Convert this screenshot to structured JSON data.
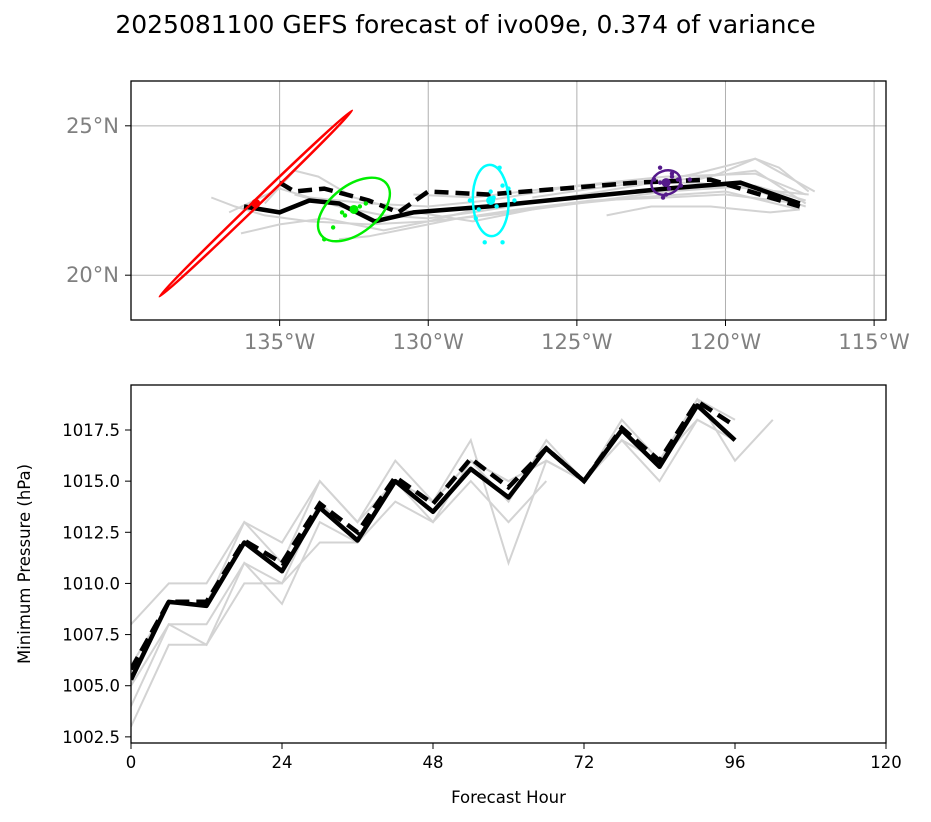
{
  "figure_title": "2025081100 GEFS forecast of ivo09e, 0.374 of variance",
  "chart_data": [
    {
      "type": "line",
      "panel": "track-map",
      "xlim": [
        -140,
        -114.6
      ],
      "ylim": [
        18.5,
        26.5
      ],
      "x_ticks": [
        -135,
        -130,
        -125,
        -120,
        -115
      ],
      "x_tick_labels": [
        "135°W",
        "130°W",
        "125°W",
        "120°W",
        "115°W"
      ],
      "y_ticks": [
        20,
        25
      ],
      "y_tick_labels": [
        "20°N",
        "25°N"
      ],
      "grid": true,
      "tick_label_color": "#808080",
      "series": [
        {
          "style": "ensemble",
          "color": "#d3d3d3",
          "points": [
            [
              -137.3,
              22.6
            ],
            [
              -136.5,
              22.3
            ],
            [
              -135.5,
              22.0
            ],
            [
              -134,
              21.8
            ],
            [
              -132,
              21.7
            ],
            [
              -130,
              21.8
            ],
            [
              -128,
              22.0
            ],
            [
              -125,
              22.4
            ],
            [
              -122,
              22.8
            ],
            [
              -119,
              23.0
            ],
            [
              -117.3,
              22.5
            ]
          ]
        },
        {
          "style": "ensemble",
          "color": "#d3d3d3",
          "points": [
            [
              -136.7,
              22.1
            ],
            [
              -135,
              22.9
            ],
            [
              -134,
              22.6
            ],
            [
              -132,
              22.4
            ],
            [
              -130,
              22.3
            ],
            [
              -128,
              22.5
            ],
            [
              -125,
              23.0
            ],
            [
              -122,
              23.3
            ],
            [
              -119,
              23.4
            ],
            [
              -117.3,
              22.7
            ]
          ]
        },
        {
          "style": "ensemble",
          "color": "#d3d3d3",
          "points": [
            [
              -136.3,
              21.4
            ],
            [
              -135,
              21.7
            ],
            [
              -133.5,
              21.9
            ],
            [
              -131.5,
              21.5
            ],
            [
              -130,
              21.8
            ],
            [
              -128,
              22.3
            ],
            [
              -125,
              22.6
            ],
            [
              -122,
              22.9
            ],
            [
              -119.5,
              23.0
            ],
            [
              -117.3,
              22.3
            ]
          ]
        },
        {
          "style": "ensemble",
          "color": "#d3d3d3",
          "points": [
            [
              -135.5,
              22.4
            ],
            [
              -134.5,
              23.5
            ],
            [
              -133.7,
              23.3
            ],
            [
              -132.5,
              22.6
            ],
            [
              -131,
              22.2
            ],
            [
              -128.5,
              21.8
            ],
            [
              -126,
              22.3
            ],
            [
              -123,
              22.6
            ],
            [
              -120,
              22.8
            ],
            [
              -117.5,
              22.2
            ]
          ]
        },
        {
          "style": "ensemble",
          "color": "#d3d3d3",
          "points": [
            [
              -134.5,
              22.7
            ],
            [
              -133,
              22.3
            ],
            [
              -131.5,
              22.0
            ],
            [
              -130,
              21.9
            ],
            [
              -128.5,
              22.1
            ],
            [
              -126,
              22.5
            ],
            [
              -123,
              23.0
            ],
            [
              -121,
              23.4
            ],
            [
              -119,
              23.9
            ],
            [
              -117,
              22.8
            ]
          ]
        },
        {
          "style": "ensemble",
          "color": "#d3d3d3",
          "points": [
            [
              -133,
              21.2
            ],
            [
              -132,
              21.3
            ],
            [
              -130.5,
              21.6
            ],
            [
              -129,
              21.9
            ],
            [
              -127,
              22.2
            ],
            [
              -124.5,
              22.5
            ],
            [
              -122,
              22.6
            ],
            [
              -120,
              22.7
            ],
            [
              -117.5,
              22.4
            ]
          ]
        },
        {
          "style": "ensemble",
          "color": "#d3d3d3",
          "points": [
            [
              -130.5,
              22.7
            ],
            [
              -128.5,
              22.6
            ],
            [
              -126,
              22.9
            ],
            [
              -123.5,
              23.1
            ],
            [
              -121.5,
              23.2
            ],
            [
              -119,
              23.5
            ],
            [
              -117.3,
              22.4
            ]
          ]
        },
        {
          "style": "ensemble",
          "color": "#d3d3d3",
          "points": [
            [
              -124,
              22.0
            ],
            [
              -122.5,
              22.3
            ],
            [
              -120.5,
              22.3
            ],
            [
              -118.5,
              22.1
            ],
            [
              -117.5,
              22.2
            ]
          ]
        },
        {
          "style": "ensemble",
          "color": "#d3d3d3",
          "points": [
            [
              -126.5,
              22.6
            ],
            [
              -124.5,
              22.9
            ],
            [
              -122.8,
              23.1
            ],
            [
              -121,
              23.1
            ],
            [
              -119.2,
              22.9
            ],
            [
              -117.2,
              22.7
            ]
          ]
        },
        {
          "style": "ensemble",
          "color": "#d3d3d3",
          "points": [
            [
              -121.3,
              23.1
            ],
            [
              -120.2,
              23.4
            ],
            [
              -119,
              23.9
            ],
            [
              -118.2,
              23.6
            ],
            [
              -117.2,
              22.8
            ]
          ]
        },
        {
          "style": "ensemble_mean",
          "color": "#000000",
          "points": [
            [
              -136.2,
              22.3
            ],
            [
              -135,
              22.1
            ],
            [
              -134,
              22.5
            ],
            [
              -133,
              22.4
            ],
            [
              -131.8,
              21.8
            ],
            [
              -130.5,
              22.1
            ],
            [
              -128,
              22.3
            ],
            [
              -125,
              22.6
            ],
            [
              -122,
              22.9
            ],
            [
              -119.5,
              23.1
            ],
            [
              -117.5,
              22.4
            ]
          ]
        },
        {
          "style": "deterministic",
          "color": "#000000",
          "points": [
            [
              -135,
              23.1
            ],
            [
              -134.5,
              22.8
            ],
            [
              -133.5,
              22.9
            ],
            [
              -132,
              22.5
            ],
            [
              -131,
              22.1
            ],
            [
              -130,
              22.8
            ],
            [
              -128,
              22.7
            ],
            [
              -125.5,
              22.9
            ],
            [
              -123,
              23.1
            ],
            [
              -120.5,
              23.2
            ],
            [
              -117.5,
              22.3
            ]
          ]
        }
      ],
      "uncertainty_ellipses": [
        {
          "color": "#ff0000",
          "center": [
            -135.8,
            22.4
          ],
          "semi_axes": [
            4.5,
            0.1
          ],
          "angle": 44
        },
        {
          "color": "#00ee00",
          "center": [
            -132.5,
            22.2
          ],
          "semi_axes": [
            1.4,
            0.8
          ],
          "angle": 38
        },
        {
          "color": "#00ffff",
          "center": [
            -127.9,
            22.5
          ],
          "semi_axes": [
            1.2,
            0.6
          ],
          "angle": -88
        },
        {
          "color": "#551a8b",
          "center": [
            -122,
            23.1
          ],
          "semi_axes": [
            0.5,
            0.4
          ],
          "angle": 20
        }
      ],
      "scatter_points": [
        {
          "color": "#00ee00",
          "points": [
            [
              -132.9,
              22.1
            ],
            [
              -132.3,
              22.3
            ],
            [
              -133.2,
              21.6
            ],
            [
              -132.8,
              22.0
            ],
            [
              -133.5,
              21.2
            ],
            [
              -132.1,
              22.4
            ]
          ]
        },
        {
          "color": "#00ffff",
          "points": [
            [
              -128.3,
              22.2
            ],
            [
              -127.8,
              22.6
            ],
            [
              -127.5,
              23.0
            ],
            [
              -128.1,
              21.1
            ],
            [
              -127.5,
              21.1
            ],
            [
              -127.3,
              22.9
            ],
            [
              -127.1,
              22.5
            ],
            [
              -128.4,
              21.9
            ],
            [
              -127.6,
              23.6
            ],
            [
              -128.6,
              22.5
            ],
            [
              -127.9,
              22.8
            ],
            [
              -127.7,
              22.3
            ]
          ]
        },
        {
          "color": "#551a8b",
          "points": [
            [
              -122.2,
              23.1
            ],
            [
              -121.8,
              23.3
            ],
            [
              -122.1,
              22.6
            ],
            [
              -121.5,
              23.0
            ],
            [
              -122.2,
              23.6
            ],
            [
              -121.9,
              22.9
            ],
            [
              -121.6,
              23.2
            ],
            [
              -122.4,
              23.2
            ],
            [
              -121.2,
              23.2
            ],
            [
              -121.8,
              23.4
            ],
            [
              -122.0,
              22.7
            ]
          ]
        }
      ]
    },
    {
      "type": "line",
      "panel": "pressure",
      "xlabel": "Forecast Hour",
      "ylabel": "Minimum Pressure (hPa)",
      "xlim": [
        0,
        120
      ],
      "ylim": [
        1002.2,
        1019.7
      ],
      "x_ticks": [
        0,
        24,
        48,
        72,
        96,
        120
      ],
      "y_ticks": [
        1002.5,
        1005.0,
        1007.5,
        1010.0,
        1012.5,
        1015.0,
        1017.5
      ],
      "y_tick_labels": [
        "1002.5",
        "1005.0",
        "1007.5",
        "1010.0",
        "1012.5",
        "1015.0",
        "1017.5"
      ],
      "grid": false,
      "series": [
        {
          "style": "ensemble",
          "color": "#d3d3d3",
          "x": [
            0,
            6,
            12,
            18,
            24,
            30,
            36,
            42,
            48,
            54,
            60,
            66,
            72,
            78,
            84,
            90,
            96,
            102
          ],
          "values": [
            1008,
            1010,
            1010,
            1013,
            1012,
            1015,
            1013,
            1016,
            1014,
            1017,
            1011,
            1016,
            1015,
            1017,
            1016,
            1019,
            1016,
            1018
          ]
        },
        {
          "style": "ensemble",
          "color": "#d3d3d3",
          "x": [
            0,
            6,
            12,
            18,
            24,
            30,
            36,
            42,
            48,
            54,
            60,
            66
          ],
          "values": [
            1005,
            1008,
            1007,
            1011,
            1009,
            1013,
            1012,
            1014,
            1013,
            1015,
            1013,
            1015
          ]
        },
        {
          "style": "ensemble",
          "color": "#d3d3d3",
          "x": [
            0,
            6,
            12,
            18,
            24,
            30,
            36,
            42,
            48,
            54,
            60,
            66,
            72,
            78,
            84,
            90,
            96
          ],
          "values": [
            1003,
            1007,
            1007,
            1010,
            1010,
            1012,
            1012,
            1015,
            1013,
            1016,
            1015,
            1016,
            1015,
            1017,
            1015,
            1018,
            1017
          ]
        },
        {
          "style": "ensemble",
          "color": "#d3d3d3",
          "x": [
            0,
            6,
            12,
            18,
            24,
            30,
            36,
            42,
            48,
            54,
            60,
            66,
            72,
            78,
            84,
            90,
            96
          ],
          "values": [
            1006,
            1009,
            1009,
            1013,
            1011,
            1015,
            1013,
            1015,
            1014,
            1016,
            1014,
            1017,
            1015,
            1018,
            1016,
            1019,
            1018
          ]
        },
        {
          "style": "ensemble",
          "color": "#d3d3d3",
          "x": [
            0,
            6,
            12,
            18,
            24,
            30,
            36,
            42,
            48,
            54,
            60,
            66,
            72,
            78,
            84,
            90,
            96
          ],
          "values": [
            1004,
            1008,
            1008,
            1011,
            1010,
            1014,
            1012,
            1015,
            1014,
            1016,
            1015,
            1016,
            1015,
            1017,
            1016,
            1018,
            1017
          ]
        },
        {
          "style": "ensemble_mean",
          "color": "#000000",
          "x": [
            0,
            6,
            12,
            18,
            24,
            30,
            36,
            42,
            48,
            54,
            60,
            66,
            72,
            78,
            84,
            90,
            96
          ],
          "values": [
            1005.3,
            1009.1,
            1008.9,
            1012.0,
            1010.6,
            1013.7,
            1012.1,
            1015.0,
            1013.5,
            1015.6,
            1014.2,
            1016.6,
            1015.0,
            1017.5,
            1015.7,
            1018.7,
            1017.0
          ]
        },
        {
          "style": "deterministic",
          "color": "#000000",
          "x": [
            0,
            6,
            12,
            18,
            24,
            30,
            36,
            42,
            48,
            54,
            60,
            66,
            72,
            78,
            84,
            90,
            96
          ],
          "values": [
            1005.8,
            1009.1,
            1009.1,
            1012.1,
            1011.0,
            1013.9,
            1012.5,
            1015.2,
            1013.9,
            1016.1,
            1014.7,
            1016.6,
            1015.0,
            1017.6,
            1016.0,
            1018.9,
            1017.7
          ]
        }
      ]
    }
  ]
}
